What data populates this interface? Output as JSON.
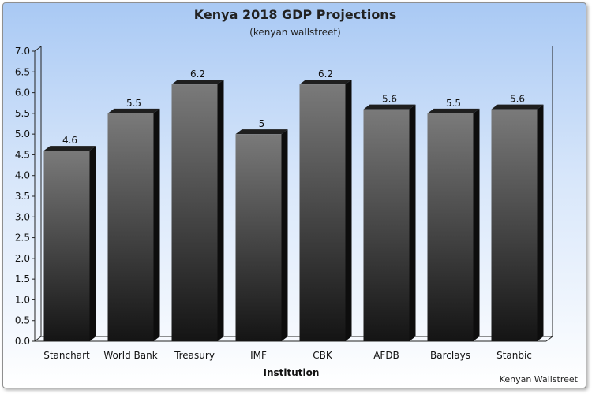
{
  "chart_data": {
    "type": "bar",
    "title": "Kenya 2018 GDP Projections",
    "subtitle": "(kenyan wallstreet)",
    "xlabel": "Institution",
    "ylabel": "",
    "categories": [
      "Stanchart",
      "World Bank",
      "Treasury",
      "IMF",
      "CBK",
      "AFDB",
      "Barclays",
      "Stanbic"
    ],
    "values": [
      4.6,
      5.5,
      6.2,
      5,
      6.2,
      5.6,
      5.5,
      5.6
    ],
    "data_labels": [
      "4.6",
      "5.5",
      "6.2",
      "5",
      "6.2",
      "5.6",
      "5.5",
      "5.6"
    ],
    "ylim": [
      0,
      7.0
    ],
    "yticks": [
      "0.0",
      "0.5",
      "1.0",
      "1.5",
      "2.0",
      "2.5",
      "3.0",
      "3.5",
      "4.0",
      "4.5",
      "5.0",
      "5.5",
      "6.0",
      "6.5",
      "7.0"
    ],
    "grid": false,
    "legend": "none",
    "style": "3d",
    "colors": {
      "bar_top": "#7a7a7a",
      "bar_bottom": "#141414",
      "bar_side": "#0d0d0d",
      "bar_cap": "#1f1f1f",
      "background_top": "#a9c9f4"
    },
    "credit": "Kenyan Wallstreet"
  }
}
